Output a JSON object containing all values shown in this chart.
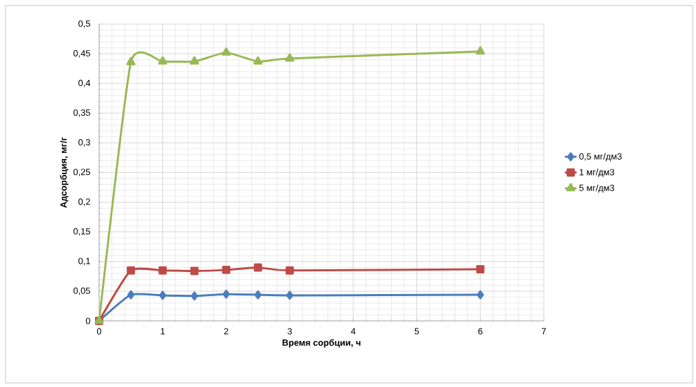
{
  "chart_data": {
    "type": "line",
    "xlabel": "Время сорбции, ч",
    "ylabel": "Адсорбция, мг/г",
    "xlim": [
      0,
      7
    ],
    "xticks": [
      0,
      1,
      2,
      3,
      4,
      5,
      6,
      7
    ],
    "ylim": [
      0,
      0.5
    ],
    "yticks": [
      {
        "value": 0,
        "label": "0"
      },
      {
        "value": 0.05,
        "label": "0,05"
      },
      {
        "value": 0.1,
        "label": "0,1"
      },
      {
        "value": 0.15,
        "label": "0,15"
      },
      {
        "value": 0.2,
        "label": "0,2"
      },
      {
        "value": 0.25,
        "label": "0,25"
      },
      {
        "value": 0.3,
        "label": "0,3"
      },
      {
        "value": 0.35,
        "label": "0,35"
      },
      {
        "value": 0.4,
        "label": "0,4"
      },
      {
        "value": 0.45,
        "label": "0,45"
      },
      {
        "value": 0.5,
        "label": "0,5"
      }
    ],
    "grid": true,
    "legend": "right",
    "x": [
      0,
      0.5,
      1,
      1.5,
      2,
      2.5,
      3,
      6
    ],
    "series": [
      {
        "name": "0,5 мг/дм3",
        "color": "#4a7ebb",
        "marker": "diamond",
        "values": [
          0,
          0.044,
          0.043,
          0.042,
          0.045,
          0.044,
          0.043,
          0.044
        ]
      },
      {
        "name": "1 мг/дм3",
        "color": "#be4b48",
        "marker": "square",
        "values": [
          0,
          0.085,
          0.085,
          0.084,
          0.086,
          0.09,
          0.085,
          0.087
        ]
      },
      {
        "name": "5 мг/дм3",
        "color": "#98b954",
        "marker": "triangle",
        "values": [
          0,
          0.436,
          0.437,
          0.437,
          0.452,
          0.437,
          0.442,
          0.454
        ]
      }
    ]
  }
}
